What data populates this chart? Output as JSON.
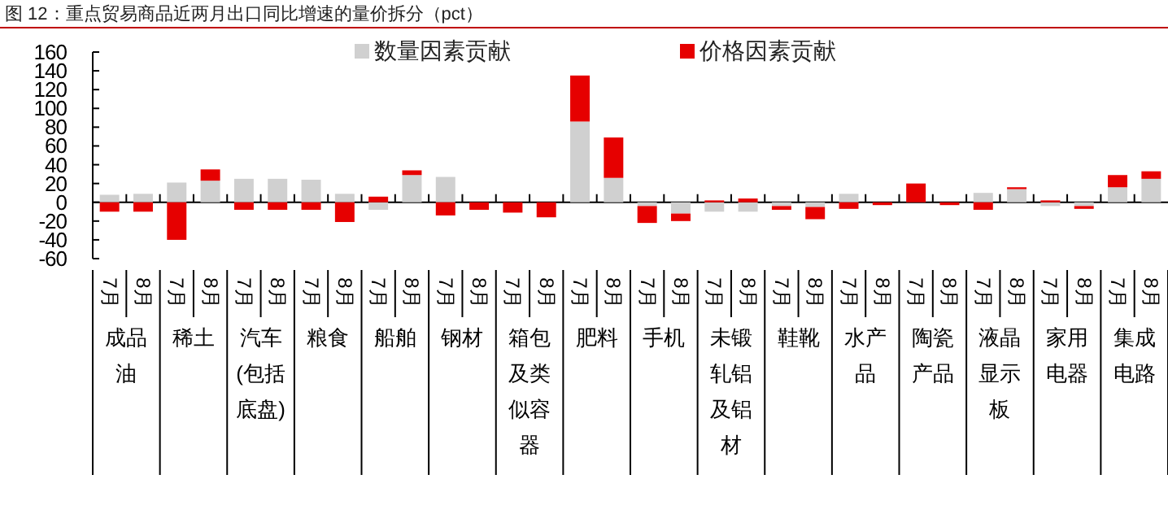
{
  "chart_data": {
    "type": "bar",
    "title": "图 12：重点贸易商品近两月出口同比增速的量价拆分（pct）",
    "categories": [
      "7月",
      "8月",
      "7月",
      "8月",
      "7月",
      "8月",
      "7月",
      "8月",
      "7月",
      "8月",
      "7月",
      "8月",
      "7月",
      "8月",
      "7月",
      "8月",
      "7月",
      "8月",
      "7月",
      "8月",
      "7月",
      "8月",
      "7月",
      "8月",
      "7月",
      "8月",
      "7月",
      "8月",
      "7月",
      "8月",
      "7月",
      "8月"
    ],
    "stacked": true,
    "series": [
      {
        "name": "数量因素贡献",
        "color": "#d0d0d0",
        "values": [
          8,
          9,
          21,
          23,
          25,
          25,
          24,
          9,
          -8,
          29,
          27,
          0,
          0,
          0,
          86,
          26,
          -4,
          -12,
          -10,
          -10,
          -4,
          -5,
          9,
          0,
          0,
          0,
          10,
          14,
          -4,
          -4,
          16,
          25
        ]
      },
      {
        "name": "价格因素贡献",
        "color": "#e60000",
        "values": [
          -10,
          -10,
          -40,
          12,
          -8,
          -8,
          -8,
          -21,
          6,
          5,
          -14,
          -8,
          -11,
          -16,
          49,
          43,
          -18,
          -8,
          2,
          4,
          -4,
          -13,
          -7,
          -3,
          20,
          -3,
          -8,
          2,
          2,
          -3,
          13,
          8
        ]
      }
    ],
    "ylim": [
      -60,
      160
    ],
    "yticks": [
      -60,
      -40,
      -20,
      0,
      20,
      40,
      60,
      80,
      100,
      120,
      140,
      160
    ],
    "legend": "top",
    "annotations": [
      "成品油",
      "稀土",
      "汽车(包括底盘)",
      "粮食",
      "船舶",
      "钢材",
      "箱包及类似容器",
      "肥料",
      "手机",
      "未锻轧铝及铝材",
      "鞋靴",
      "水产品",
      "陶瓷产品",
      "液晶显示板",
      "家用电器",
      "集成电路"
    ]
  }
}
